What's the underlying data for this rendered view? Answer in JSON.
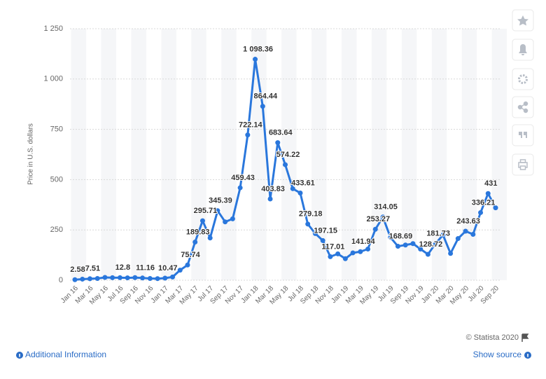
{
  "chart_data": {
    "type": "line",
    "y_label": "Price in U.S. dollars",
    "categories": [
      "Jan 16",
      null,
      "Mar 16",
      null,
      "May 16",
      null,
      "Jul 16",
      null,
      "Sep 16",
      null,
      "Nov 16",
      null,
      "Jan 17",
      null,
      "Mar 17",
      null,
      "May 17",
      null,
      "Jul 17",
      null,
      "Sep 17",
      null,
      "Nov 17",
      null,
      "Jan 18",
      null,
      "Mar 18",
      null,
      "May 18",
      null,
      "Jul 18",
      null,
      "Sep 18",
      null,
      "Nov 18",
      null,
      "Jan 19",
      null,
      "Mar 19",
      null,
      "May 19",
      null,
      "Jul 19",
      null,
      "Sep 19",
      null,
      "Nov 19",
      null,
      "Jan 20",
      null,
      "Mar 20",
      null,
      "May 20",
      null,
      "Jul 20",
      null,
      "Sep 20"
    ],
    "values": [
      2.58,
      5.4,
      7.51,
      8.8,
      13.9,
      12.5,
      12.8,
      11.9,
      13.1,
      11.16,
      8.6,
      8.0,
      10.47,
      16,
      50,
      75.74,
      189.83,
      295.71,
      210,
      345.39,
      290,
      305,
      459.43,
      722.14,
      1098.36,
      864.44,
      403.83,
      683.64,
      574.22,
      455,
      433.61,
      279.18,
      232,
      197.15,
      117.01,
      131,
      107,
      136,
      141.94,
      155,
      253.27,
      314.05,
      213,
      168.69,
      175,
      182,
      155,
      128.72,
      181.73,
      225,
      133,
      207,
      243.63,
      228,
      336.21,
      431,
      360
    ],
    "value_labels": [
      "2.58",
      null,
      "7.51",
      null,
      null,
      null,
      "12.8",
      null,
      null,
      "11.16",
      null,
      null,
      "10.47",
      null,
      null,
      "75.74",
      "189.83",
      "295.71",
      null,
      "345.39",
      null,
      null,
      "459.43",
      "722.14",
      "1 098.36",
      "864.44",
      "403.83",
      "683.64",
      "574.22",
      null,
      "433.61",
      "279.18",
      null,
      "197.15",
      "117.01",
      null,
      null,
      null,
      "141.94",
      null,
      "253.27",
      "314.05",
      null,
      "168.69",
      null,
      null,
      null,
      "128.72",
      "181.73",
      null,
      null,
      null,
      "243.63",
      null,
      "336.21",
      "431",
      null
    ],
    "color": "#2a77dc",
    "ylim": [
      0,
      1250
    ],
    "yticks": [
      0,
      250,
      500,
      750,
      {
        "value": 1000,
        "label": "1 000"
      },
      {
        "value": 1250,
        "label": "1 250"
      }
    ],
    "grid": true
  },
  "footer": {
    "copyright": "© Statista 2020",
    "additional_info": "Additional Information",
    "show_source": "Show source"
  }
}
